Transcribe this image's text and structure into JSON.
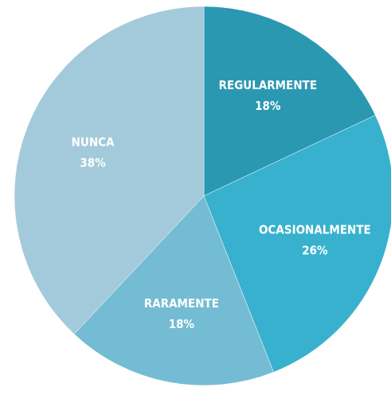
{
  "chart_data": {
    "type": "pie",
    "categories": [
      "REGULARMENTE",
      "OCASIONALMENTE",
      "RARAMENTE",
      "NUNCA"
    ],
    "values": [
      18,
      26,
      18,
      38
    ],
    "value_labels": [
      "18%",
      "26%",
      "18%",
      "38%"
    ],
    "colors": [
      "#2b98b2",
      "#38b1ce",
      "#74bcd4",
      "#a3cadb"
    ]
  }
}
